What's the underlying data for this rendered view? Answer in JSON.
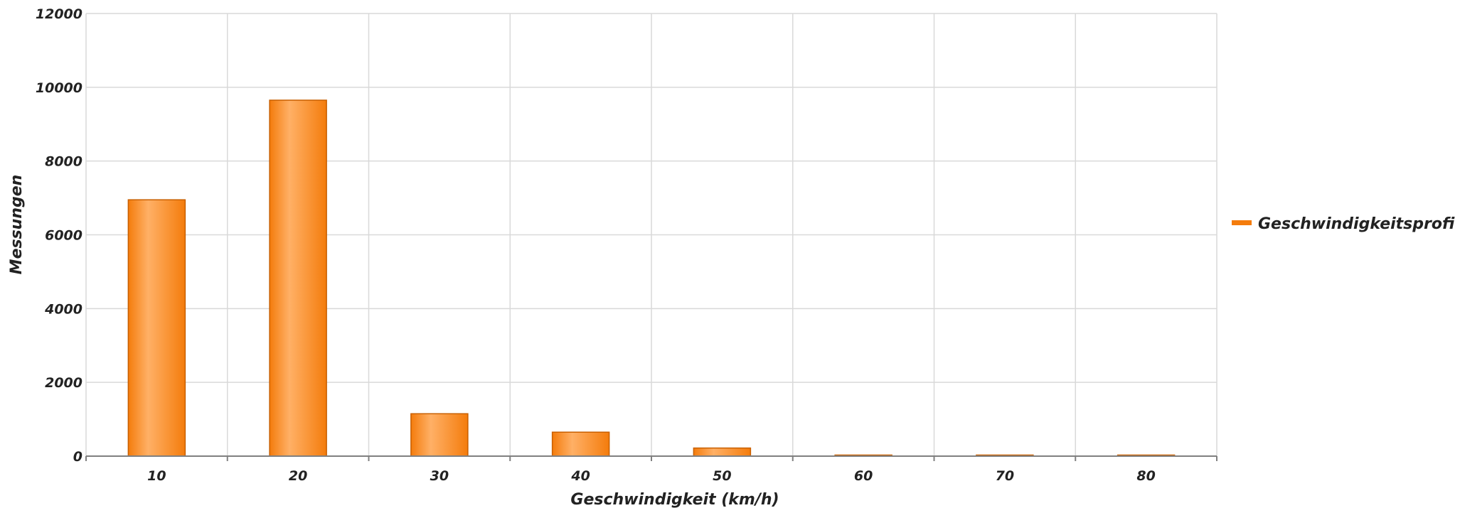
{
  "chart_data": {
    "type": "bar",
    "title": "",
    "xlabel": "Geschwindigkeit (km/h)",
    "ylabel": "Messungen",
    "categories": [
      "10",
      "20",
      "30",
      "40",
      "50",
      "60",
      "70",
      "80"
    ],
    "series": [
      {
        "name": "Geschwindigkeitsprofi",
        "values": [
          6950,
          9650,
          1150,
          650,
          220,
          0,
          0,
          0
        ]
      }
    ],
    "ylim": [
      0,
      12000
    ],
    "yticks": [
      "0",
      "2000",
      "4000",
      "6000",
      "8000",
      "10000",
      "12000"
    ],
    "grid": true,
    "legend_position": "right",
    "colors": {
      "bar_fill_light": "#ffb066",
      "bar_fill_dark": "#f47c0c",
      "bar_stroke": "#c85f00",
      "grid": "#d9d9d9",
      "axis": "#808080"
    }
  }
}
